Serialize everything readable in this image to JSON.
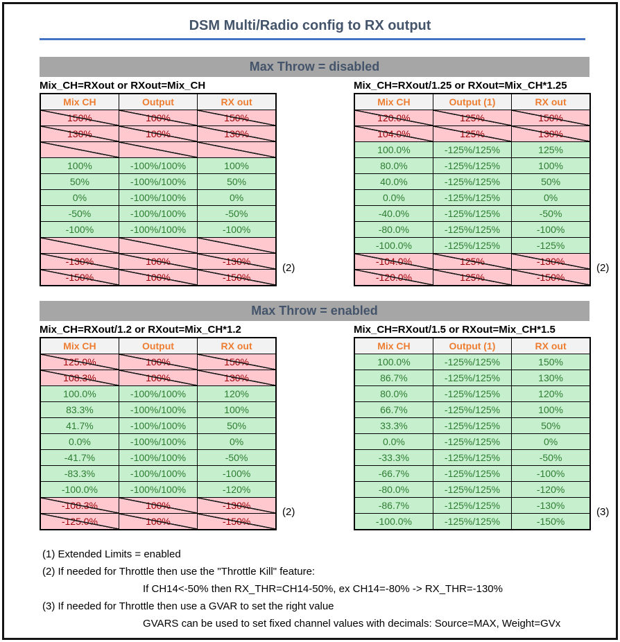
{
  "title": "DSM Multi/Radio config to RX output",
  "colors": {
    "accent_blue_rule": "#4472C4",
    "heading_slate": "#44546A",
    "section_bar_gray": "#A6A6A6",
    "column_header_orange": "#ED7D31",
    "ok_bg": "#C6EFCE",
    "ok_text": "#2E7D32",
    "crossed_bg": "#FFC7CE",
    "crossed_text": "#9C0006"
  },
  "sections": [
    {
      "header": "Max Throw = disabled",
      "tables": [
        {
          "caption": "Mix_CH=RXout or RXout=Mix_CH",
          "columns": [
            "Mix CH",
            "Output",
            "RX out"
          ],
          "rows": [
            {
              "cells": [
                "150%",
                "100%",
                "150%"
              ],
              "state": "crossed"
            },
            {
              "cells": [
                "130%",
                "100%",
                "130%"
              ],
              "state": "crossed"
            },
            {
              "cells": [
                "",
                "",
                ""
              ],
              "state": "crossed"
            },
            {
              "cells": [
                "100%",
                "-100%/100%",
                "100%"
              ],
              "state": "ok"
            },
            {
              "cells": [
                "50%",
                "-100%/100%",
                "50%"
              ],
              "state": "ok"
            },
            {
              "cells": [
                "0%",
                "-100%/100%",
                "0%"
              ],
              "state": "ok"
            },
            {
              "cells": [
                "-50%",
                "-100%/100%",
                "-50%"
              ],
              "state": "ok"
            },
            {
              "cells": [
                "-100%",
                "-100%/100%",
                "-100%"
              ],
              "state": "ok"
            },
            {
              "cells": [
                "",
                "",
                ""
              ],
              "state": "crossed"
            },
            {
              "cells": [
                "-130%",
                "100%",
                "-130%"
              ],
              "state": "crossed",
              "note": "(2)"
            },
            {
              "cells": [
                "-150%",
                "100%",
                "-150%"
              ],
              "state": "crossed"
            }
          ]
        },
        {
          "caption": "Mix_CH=RXout/1.25 or RXout=Mix_CH*1.25",
          "columns": [
            "Mix CH",
            "Output (1)",
            "RX out"
          ],
          "rows": [
            {
              "cells": [
                "120.0%",
                "125%",
                "150%"
              ],
              "state": "crossed"
            },
            {
              "cells": [
                "104.0%",
                "125%",
                "130%"
              ],
              "state": "crossed"
            },
            {
              "cells": [
                "100.0%",
                "-125%/125%",
                "125%"
              ],
              "state": "ok"
            },
            {
              "cells": [
                "80.0%",
                "-125%/125%",
                "100%"
              ],
              "state": "ok"
            },
            {
              "cells": [
                "40.0%",
                "-125%/125%",
                "50%"
              ],
              "state": "ok"
            },
            {
              "cells": [
                "0.0%",
                "-125%/125%",
                "0%"
              ],
              "state": "ok"
            },
            {
              "cells": [
                "-40.0%",
                "-125%/125%",
                "-50%"
              ],
              "state": "ok"
            },
            {
              "cells": [
                "-80.0%",
                "-125%/125%",
                "-100%"
              ],
              "state": "ok"
            },
            {
              "cells": [
                "-100.0%",
                "-125%/125%",
                "-125%"
              ],
              "state": "ok"
            },
            {
              "cells": [
                "-104.0%",
                "125%",
                "-130%"
              ],
              "state": "crossed",
              "note": "(2)"
            },
            {
              "cells": [
                "-120.0%",
                "125%",
                "-150%"
              ],
              "state": "crossed"
            }
          ]
        }
      ]
    },
    {
      "header": "Max Throw = enabled",
      "tables": [
        {
          "caption": "Mix_CH=RXout/1.2 or RXout=Mix_CH*1.2",
          "columns": [
            "Mix CH",
            "Output",
            "RX out"
          ],
          "rows": [
            {
              "cells": [
                "125.0%",
                "100%",
                "150%"
              ],
              "state": "crossed"
            },
            {
              "cells": [
                "108.3%",
                "100%",
                "130%"
              ],
              "state": "crossed"
            },
            {
              "cells": [
                "100.0%",
                "-100%/100%",
                "120%"
              ],
              "state": "ok"
            },
            {
              "cells": [
                "83.3%",
                "-100%/100%",
                "100%"
              ],
              "state": "ok"
            },
            {
              "cells": [
                "41.7%",
                "-100%/100%",
                "50%"
              ],
              "state": "ok"
            },
            {
              "cells": [
                "0.0%",
                "-100%/100%",
                "0%"
              ],
              "state": "ok"
            },
            {
              "cells": [
                "-41.7%",
                "-100%/100%",
                "-50%"
              ],
              "state": "ok"
            },
            {
              "cells": [
                "-83.3%",
                "-100%/100%",
                "-100%"
              ],
              "state": "ok"
            },
            {
              "cells": [
                "-100.0%",
                "-100%/100%",
                "-120%"
              ],
              "state": "ok"
            },
            {
              "cells": [
                "-108.3%",
                "100%",
                "-130%"
              ],
              "state": "crossed",
              "note": "(2)"
            },
            {
              "cells": [
                "-125.0%",
                "100%",
                "-150%"
              ],
              "state": "crossed"
            }
          ]
        },
        {
          "caption": "Mix_CH=RXout/1.5 or RXout=Mix_CH*1.5",
          "columns": [
            "Mix CH",
            "Output (1)",
            "RX out"
          ],
          "rows": [
            {
              "cells": [
                "100.0%",
                "-125%/125%",
                "150%"
              ],
              "state": "ok"
            },
            {
              "cells": [
                "86.7%",
                "-125%/125%",
                "130%"
              ],
              "state": "ok"
            },
            {
              "cells": [
                "80.0%",
                "-125%/125%",
                "120%"
              ],
              "state": "ok"
            },
            {
              "cells": [
                "66.7%",
                "-125%/125%",
                "100%"
              ],
              "state": "ok"
            },
            {
              "cells": [
                "33.3%",
                "-125%/125%",
                "50%"
              ],
              "state": "ok"
            },
            {
              "cells": [
                "0.0%",
                "-125%/125%",
                "0%"
              ],
              "state": "ok"
            },
            {
              "cells": [
                "-33.3%",
                "-125%/125%",
                "-50%"
              ],
              "state": "ok"
            },
            {
              "cells": [
                "-66.7%",
                "-125%/125%",
                "-100%"
              ],
              "state": "ok"
            },
            {
              "cells": [
                "-80.0%",
                "-125%/125%",
                "-120%"
              ],
              "state": "ok"
            },
            {
              "cells": [
                "-86.7%",
                "-125%/125%",
                "-130%"
              ],
              "state": "ok",
              "note": "(3)"
            },
            {
              "cells": [
                "-100.0%",
                "-125%/125%",
                "-150%"
              ],
              "state": "ok"
            }
          ]
        }
      ]
    }
  ],
  "footnotes": [
    {
      "text": "(1) Extended Limits = enabled",
      "indent": 0
    },
    {
      "text": "(2) If needed for Throttle then use the \"Throttle Kill\" feature:",
      "indent": 0
    },
    {
      "text": "If CH14<-50% then RX_THR=CH14-50%, ex CH14=-80% -> RX_THR=-130%",
      "indent": 1
    },
    {
      "text": "(3) If needed for Throttle then use a GVAR to set the right value",
      "indent": 0
    },
    {
      "text": "GVARS can be used to set fixed channel values with decimals: Source=MAX, Weight=GVx",
      "indent": 1
    }
  ]
}
